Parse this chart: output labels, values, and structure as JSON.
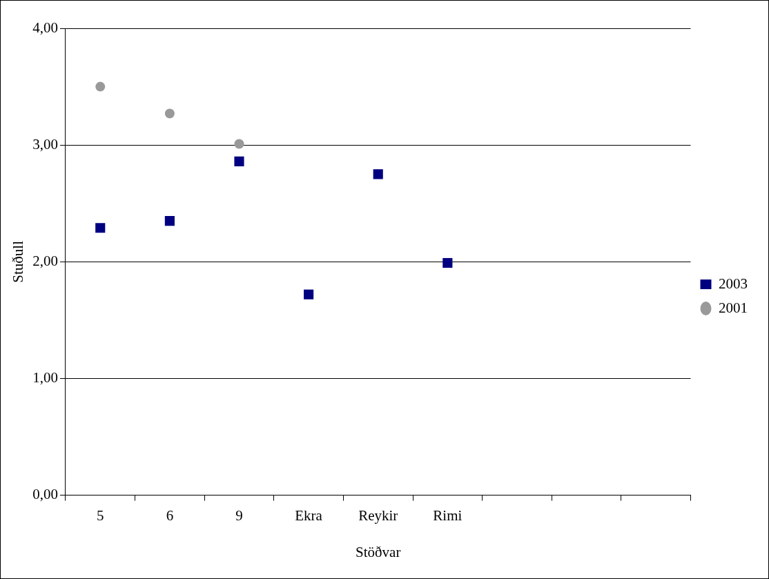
{
  "chart_data": {
    "type": "scatter",
    "xlabel": "Stöðvar",
    "ylabel": "Stuðull",
    "categories": [
      "5",
      "6",
      "9",
      "Ekra",
      "Reykir",
      "Rimi",
      null,
      null,
      null
    ],
    "series": [
      {
        "name": "2003",
        "color": "#000080",
        "marker": "square",
        "values": [
          2.29,
          2.35,
          2.86,
          1.72,
          2.75,
          1.99,
          null,
          null,
          null
        ]
      },
      {
        "name": "2001",
        "color": "#999999",
        "marker": "circle",
        "values": [
          3.5,
          3.27,
          3.01,
          null,
          null,
          null,
          null,
          null,
          null
        ]
      }
    ],
    "ylim": [
      0,
      4
    ],
    "yticks": [
      {
        "value": 0,
        "label": "0,00"
      },
      {
        "value": 1,
        "label": "1,00"
      },
      {
        "value": 2,
        "label": "2,00"
      },
      {
        "value": 3,
        "label": "3,00"
      },
      {
        "value": 4,
        "label": "4,00"
      }
    ],
    "grid": "y",
    "legend": "right"
  }
}
